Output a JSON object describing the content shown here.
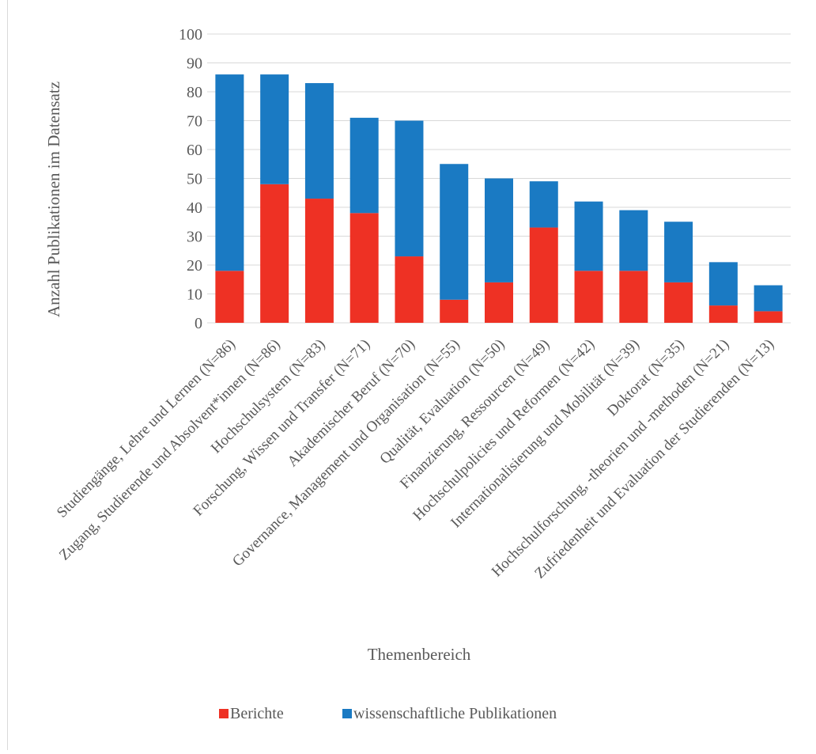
{
  "chart_data": {
    "type": "bar",
    "stacked": true,
    "title": "",
    "xlabel": "Themenbereich",
    "ylabel": "Anzahl Publikationen im Datensatz",
    "ylim": [
      0,
      100
    ],
    "yticks": [
      0,
      10,
      20,
      30,
      40,
      50,
      60,
      70,
      80,
      90,
      100
    ],
    "grid": true,
    "legend_position": "bottom",
    "categories": [
      "Studiengänge, Lehre und Lernen (N=86)",
      "Zugang, Studierende und Absolvent*innen (N=86)",
      "Hochschulsystem (N=83)",
      "Forschung, Wissen und Transfer (N=71)",
      "Akademischer Beruf (N=70)",
      "Governance, Management und Organisation (N=55)",
      "Qualität, Evaluation (N=50)",
      "Finanzierung, Ressourcen (N=49)",
      "Hochschulpolicies und Reformen (N=42)",
      "Internationalisierung und Mobilität (N=39)",
      "Doktorat (N=35)",
      "Hochschulforschung, -theorien und -methoden (N=21)",
      "Zufriedenheit und Evaluation der Studierenden (N=13)"
    ],
    "series": [
      {
        "name": "Berichte",
        "color": "#ee3124",
        "values": [
          18,
          48,
          43,
          38,
          23,
          8,
          14,
          33,
          18,
          18,
          14,
          6,
          4
        ]
      },
      {
        "name": "wissenschaftliche Publikationen",
        "color": "#1a7ac3",
        "values": [
          68,
          38,
          40,
          33,
          47,
          47,
          36,
          16,
          24,
          21,
          21,
          15,
          9
        ]
      }
    ]
  }
}
